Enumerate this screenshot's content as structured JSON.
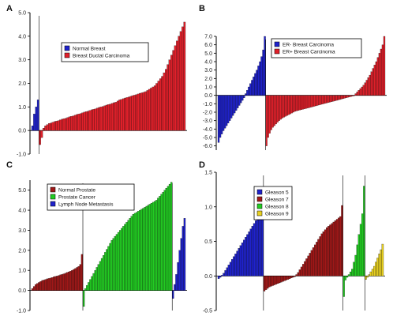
{
  "chart_data": [
    {
      "panel": "A",
      "type": "bar",
      "ylim": [
        -1.0,
        5.0
      ],
      "yticks": [
        "5.0",
        "4.0",
        "3.0",
        "2.0",
        "1.0",
        "0.0",
        "-1.0"
      ],
      "grid": false,
      "legend_placement": "center-right",
      "series": [
        {
          "name": "Normal Breast",
          "color": "#1f22cc",
          "values": [
            0.2,
            0.7,
            1.0,
            1.3
          ]
        },
        {
          "name": "Breast Ductal Carcinoma",
          "color": "#e0202a",
          "values": [
            -0.6,
            -0.3,
            0.1,
            0.2,
            0.25,
            0.3,
            0.32,
            0.35,
            0.38,
            0.4,
            0.42,
            0.45,
            0.48,
            0.5,
            0.52,
            0.55,
            0.58,
            0.6,
            0.62,
            0.65,
            0.68,
            0.7,
            0.72,
            0.75,
            0.78,
            0.8,
            0.82,
            0.85,
            0.88,
            0.9,
            0.92,
            0.95,
            0.98,
            1.0,
            1.02,
            1.05,
            1.08,
            1.1,
            1.12,
            1.15,
            1.18,
            1.2,
            1.25,
            1.3,
            1.32,
            1.35,
            1.38,
            1.4,
            1.42,
            1.45,
            1.48,
            1.5,
            1.52,
            1.55,
            1.58,
            1.6,
            1.62,
            1.65,
            1.7,
            1.75,
            1.8,
            1.85,
            1.9,
            2.0,
            2.1,
            2.2,
            2.3,
            2.45,
            2.6,
            2.8,
            3.0,
            3.2,
            3.4,
            3.6,
            3.8,
            4.0,
            4.2,
            4.4,
            4.6
          ]
        }
      ]
    },
    {
      "panel": "B",
      "type": "bar",
      "ylim": [
        -6.5,
        7.0
      ],
      "yticks": [
        "7.0",
        "6.0",
        "5.0",
        "4.0",
        "3.0",
        "2.0",
        "1.0",
        "0.0",
        "-1.0",
        "-2.0",
        "-3.0",
        "-4.0",
        "-5.0",
        "-6.0"
      ],
      "grid": false,
      "legend_placement": "top-right",
      "series": [
        {
          "name": "ER- Breast Carcinoma",
          "color": "#1f22cc",
          "values": [
            -5.6,
            -5.0,
            -4.6,
            -4.2,
            -3.9,
            -3.6,
            -3.3,
            -3.0,
            -2.7,
            -2.4,
            -2.1,
            -1.8,
            -1.5,
            -1.2,
            -0.9,
            -0.6,
            -0.3,
            0.2,
            0.6,
            1.0,
            1.4,
            1.8,
            2.2,
            2.6,
            3.0,
            3.5,
            4.0,
            4.6,
            5.4,
            7.0
          ]
        },
        {
          "name": "ER+ Breast Carcinoma",
          "color": "#e0202a",
          "values": [
            -6.0,
            -5.0,
            -4.5,
            -4.1,
            -3.8,
            -3.6,
            -3.4,
            -3.2,
            -3.0,
            -2.85,
            -2.7,
            -2.6,
            -2.5,
            -2.4,
            -2.3,
            -2.2,
            -2.1,
            -2.0,
            -1.9,
            -1.85,
            -1.8,
            -1.75,
            -1.7,
            -1.65,
            -1.6,
            -1.55,
            -1.5,
            -1.45,
            -1.4,
            -1.35,
            -1.3,
            -1.25,
            -1.2,
            -1.15,
            -1.1,
            -1.05,
            -1.0,
            -0.95,
            -0.9,
            -0.85,
            -0.8,
            -0.75,
            -0.7,
            -0.65,
            -0.6,
            -0.55,
            -0.5,
            -0.45,
            -0.4,
            -0.35,
            -0.3,
            -0.25,
            -0.2,
            -0.15,
            -0.1,
            -0.05,
            0.2,
            0.4,
            0.6,
            0.8,
            1.0,
            1.2,
            1.5,
            1.8,
            2.1,
            2.4,
            2.8,
            3.2,
            3.6,
            4.0,
            4.5,
            5.0,
            5.5,
            6.0,
            7.0
          ]
        }
      ]
    },
    {
      "panel": "C",
      "type": "bar",
      "ylim": [
        -1.0,
        5.5
      ],
      "yticks": [
        "5.0",
        "4.0",
        "3.0",
        "2.0",
        "1.0",
        "0.0",
        "-1.0"
      ],
      "grid": false,
      "legend_placement": "top-left",
      "series": [
        {
          "name": "Normal Prostate",
          "color": "#a01818",
          "values": [
            0.1,
            0.2,
            0.3,
            0.35,
            0.4,
            0.45,
            0.5,
            0.52,
            0.55,
            0.58,
            0.6,
            0.62,
            0.65,
            0.68,
            0.7,
            0.72,
            0.75,
            0.78,
            0.8,
            0.83,
            0.86,
            0.9,
            0.93,
            0.96,
            1.0,
            1.05,
            1.1,
            1.15,
            1.2,
            1.3,
            1.8
          ]
        },
        {
          "name": "Prostate Cancer",
          "color": "#22cc22",
          "values": [
            -0.8,
            0.1,
            0.25,
            0.4,
            0.55,
            0.7,
            0.85,
            1.0,
            1.15,
            1.3,
            1.45,
            1.6,
            1.75,
            1.9,
            2.05,
            2.2,
            2.35,
            2.5,
            2.6,
            2.7,
            2.8,
            2.9,
            3.0,
            3.1,
            3.2,
            3.3,
            3.4,
            3.5,
            3.6,
            3.7,
            3.8,
            3.85,
            3.9,
            3.95,
            4.0,
            4.05,
            4.1,
            4.15,
            4.2,
            4.25,
            4.3,
            4.35,
            4.4,
            4.45,
            4.5,
            4.6,
            4.7,
            4.8,
            4.9,
            5.0,
            5.1,
            5.2,
            5.3,
            5.4
          ]
        },
        {
          "name": "Lymph Node Metastasis",
          "color": "#1f22cc",
          "values": [
            -0.4,
            0.3,
            0.8,
            1.4,
            2.0,
            2.6,
            3.2,
            3.6
          ]
        }
      ]
    },
    {
      "panel": "D",
      "type": "bar",
      "ylim": [
        -0.5,
        1.5
      ],
      "yticks": [
        "1.5",
        "1.0",
        "0.5",
        "0.0",
        "-0.5"
      ],
      "grid": false,
      "legend_placement": "top-left",
      "series": [
        {
          "name": "Gleason 5",
          "color": "#1f22cc",
          "values": [
            -0.04,
            -0.02,
            0.01,
            0.04,
            0.08,
            0.12,
            0.16,
            0.2,
            0.24,
            0.28,
            0.32,
            0.36,
            0.4,
            0.44,
            0.48,
            0.52,
            0.56,
            0.6,
            0.64,
            0.68,
            0.72,
            0.76,
            0.8,
            0.84,
            0.9,
            0.96,
            1.02
          ]
        },
        {
          "name": "Gleason 7",
          "color": "#a01818",
          "values": [
            -0.22,
            -0.2,
            -0.18,
            -0.16,
            -0.15,
            -0.14,
            -0.13,
            -0.12,
            -0.11,
            -0.1,
            -0.09,
            -0.08,
            -0.07,
            -0.06,
            -0.05,
            -0.04,
            -0.03,
            -0.02,
            -0.01,
            0.02,
            0.05,
            0.09,
            0.13,
            0.17,
            0.21,
            0.25,
            0.29,
            0.33,
            0.37,
            0.41,
            0.45,
            0.49,
            0.53,
            0.57,
            0.61,
            0.64,
            0.67,
            0.7,
            0.72,
            0.74,
            0.76,
            0.78,
            0.8,
            0.82,
            0.84,
            0.86,
            1.02
          ]
        },
        {
          "name": "Gleason 8",
          "color": "#22cc22",
          "values": [
            -0.3,
            -0.06,
            -0.02,
            0.02,
            0.06,
            0.1,
            0.2,
            0.3,
            0.45,
            0.6,
            0.75,
            0.9,
            1.3
          ]
        },
        {
          "name": "Gleason 9",
          "color": "#e8d020",
          "values": [
            -0.05,
            -0.02,
            0.02,
            0.06,
            0.1,
            0.14,
            0.2,
            0.26,
            0.32,
            0.38,
            0.46
          ]
        }
      ]
    }
  ]
}
